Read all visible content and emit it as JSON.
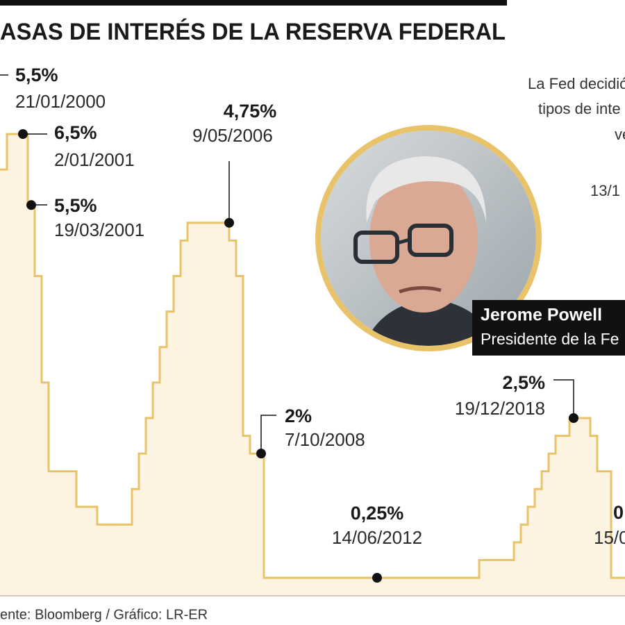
{
  "chart_data": {
    "type": "step",
    "title": "ASAS DE INTERÉS DE LA RESERVA FEDERAL",
    "values": [
      6.0,
      6.5,
      6.5,
      6.5,
      5.5,
      4.5,
      3.0,
      1.75,
      1.75,
      1.75,
      1.75,
      1.25,
      1.25,
      1.25,
      1.0,
      1.0,
      1.0,
      1.0,
      1.0,
      1.5,
      2.0,
      2.5,
      3.0,
      3.5,
      4.0,
      4.5,
      5.0,
      5.25,
      5.25,
      5.25,
      5.25,
      5.25,
      5.25,
      5.0,
      4.5,
      2.25,
      2.0,
      2.0,
      0.25,
      0.25,
      0.25,
      0.25,
      0.25,
      0.25,
      0.25,
      0.25,
      0.25,
      0.25,
      0.25,
      0.25,
      0.25,
      0.25,
      0.25,
      0.25,
      0.25,
      0.25,
      0.25,
      0.25,
      0.25,
      0.25,
      0.25,
      0.25,
      0.25,
      0.25,
      0.25,
      0.25,
      0.25,
      0.25,
      0.25,
      0.5,
      0.5,
      0.5,
      0.5,
      0.5,
      0.75,
      1.0,
      1.25,
      1.5,
      1.75,
      2.0,
      2.25,
      2.25,
      2.5,
      2.5,
      2.5,
      2.25,
      1.75,
      1.75,
      0.25,
      0.25
    ],
    "color": "#e8c36a",
    "fill": "#fdf3e1",
    "ylim": [
      0,
      7
    ],
    "annotations": [
      {
        "label": "5,5%",
        "date": "21/01/2000"
      },
      {
        "label": "6,5%",
        "date": "2/01/2001"
      },
      {
        "label": "5,5%",
        "date": "19/03/2001"
      },
      {
        "label": "4,75%",
        "date": "9/05/2006"
      },
      {
        "label": "2%",
        "date": "7/10/2008"
      },
      {
        "label": "0,25%",
        "date": "14/06/2012"
      },
      {
        "label": "2,5%",
        "date": "19/12/2018"
      },
      {
        "label": "0",
        "date": "15/0"
      }
    ]
  },
  "note_lines": [
    "La Fed decidió",
    "tipos de inte",
    "ve",
    "13/1"
  ],
  "photo_caption": {
    "name": "Jerome Powell",
    "role": "Presidente de la Fe"
  },
  "source": "ente: Bloomberg / Gráfico: LR-ER"
}
